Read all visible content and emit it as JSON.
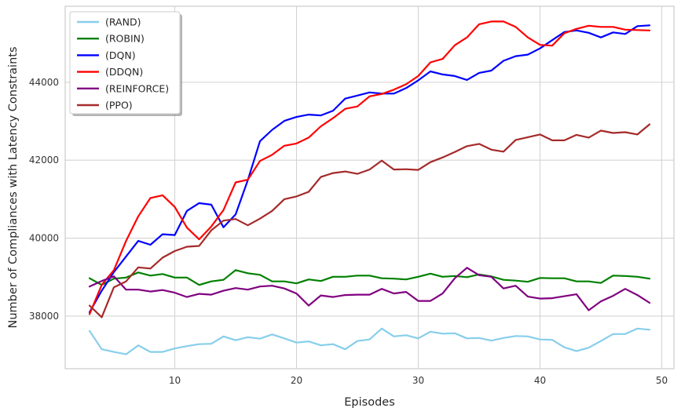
{
  "chart_data": {
    "type": "line",
    "title": "",
    "xlabel": "Episodes",
    "ylabel": "Number of Compliances with Latency Constraints",
    "xlim": [
      1,
      51
    ],
    "ylim": [
      36650,
      45950
    ],
    "xticks": [
      10,
      20,
      30,
      40,
      50
    ],
    "yticks": [
      38000,
      40000,
      42000,
      44000
    ],
    "grid": true,
    "legend_position": "top-left",
    "x": [
      3,
      4,
      5,
      6,
      7,
      8,
      9,
      10,
      11,
      12,
      13,
      14,
      15,
      16,
      17,
      18,
      19,
      20,
      21,
      22,
      23,
      24,
      25,
      26,
      27,
      28,
      29,
      30,
      31,
      32,
      33,
      34,
      35,
      36,
      37,
      38,
      39,
      40,
      41,
      42,
      43,
      44,
      45,
      46,
      47,
      48,
      49
    ],
    "series": [
      {
        "name": "(RAND)",
        "color": "#87ceeb",
        "values": [
          37620,
          37150,
          37080,
          37020,
          37250,
          37080,
          37080,
          37170,
          37230,
          37280,
          37290,
          37480,
          37380,
          37460,
          37420,
          37530,
          37430,
          37320,
          37350,
          37250,
          37280,
          37150,
          37360,
          37400,
          37680,
          37480,
          37510,
          37430,
          37600,
          37550,
          37560,
          37430,
          37440,
          37370,
          37440,
          37490,
          37480,
          37400,
          37390,
          37200,
          37100,
          37190,
          37360,
          37540,
          37540,
          37680,
          37650
        ]
      },
      {
        "name": "(ROBIN)",
        "color": "#008000",
        "values": [
          38970,
          38800,
          38960,
          38990,
          39120,
          39040,
          39080,
          38990,
          38990,
          38800,
          38890,
          38930,
          39180,
          39100,
          39060,
          38890,
          38890,
          38840,
          38940,
          38900,
          39010,
          39010,
          39040,
          39040,
          38970,
          38960,
          38940,
          39010,
          39090,
          39010,
          39030,
          39000,
          39070,
          39020,
          38930,
          38910,
          38880,
          38980,
          38970,
          38970,
          38890,
          38890,
          38850,
          39040,
          39030,
          39010,
          38960
        ]
      },
      {
        "name": "(DQN)",
        "color": "#0000ff",
        "values": [
          38100,
          38650,
          39130,
          39530,
          39930,
          39830,
          40100,
          40080,
          40700,
          40900,
          40860,
          40280,
          40610,
          41490,
          42490,
          42780,
          43010,
          43110,
          43170,
          43150,
          43270,
          43580,
          43660,
          43740,
          43710,
          43710,
          43850,
          44050,
          44280,
          44200,
          44160,
          44060,
          44240,
          44300,
          44550,
          44670,
          44710,
          44870,
          45080,
          45290,
          45330,
          45270,
          45150,
          45280,
          45240,
          45440,
          45460
        ]
      },
      {
        "name": "(DDQN)",
        "color": "#ff0000",
        "values": [
          38050,
          38800,
          39180,
          39930,
          40560,
          41030,
          41100,
          40800,
          40270,
          39970,
          40300,
          40720,
          41430,
          41500,
          41980,
          42140,
          42370,
          42430,
          42580,
          42870,
          43080,
          43320,
          43380,
          43640,
          43700,
          43810,
          43950,
          44160,
          44510,
          44600,
          44950,
          45150,
          45490,
          45560,
          45560,
          45420,
          45150,
          44960,
          44940,
          45260,
          45370,
          45450,
          45420,
          45420,
          45350,
          45340,
          45330
        ]
      },
      {
        "name": "(REINFORCE)",
        "color": "#800080",
        "values": [
          38760,
          38900,
          39020,
          38680,
          38680,
          38630,
          38670,
          38600,
          38490,
          38570,
          38550,
          38650,
          38720,
          38680,
          38760,
          38780,
          38710,
          38580,
          38270,
          38530,
          38490,
          38540,
          38550,
          38550,
          38700,
          38580,
          38620,
          38390,
          38390,
          38580,
          38970,
          39240,
          39050,
          39010,
          38710,
          38780,
          38500,
          38450,
          38460,
          38510,
          38560,
          38150,
          38380,
          38520,
          38700,
          38540,
          38340
        ]
      },
      {
        "name": "(PPO)",
        "color": "#a52a2a",
        "values": [
          38270,
          37970,
          38740,
          38890,
          39250,
          39220,
          39500,
          39670,
          39780,
          39800,
          40200,
          40450,
          40490,
          40330,
          40500,
          40700,
          41000,
          41070,
          41190,
          41570,
          41670,
          41710,
          41650,
          41760,
          41990,
          41760,
          41770,
          41750,
          41950,
          42070,
          42210,
          42360,
          42420,
          42270,
          42220,
          42520,
          42590,
          42660,
          42510,
          42510,
          42650,
          42580,
          42760,
          42700,
          42720,
          42660,
          42920
        ]
      }
    ]
  }
}
